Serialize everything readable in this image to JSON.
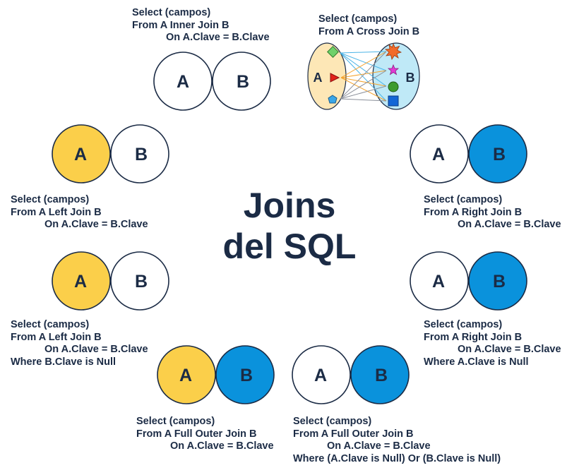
{
  "title": {
    "line1": "Joins",
    "line2": "del SQL"
  },
  "colors": {
    "a_fill": "#fbcf4a",
    "b_fill": "#0a92dc",
    "overlap": "#f4a22c",
    "outline": "#1b2b45",
    "cross_a_bg": "#fde7b6",
    "cross_b_bg": "#bfe9f7"
  },
  "labels": {
    "a": "A",
    "b": "B"
  },
  "joins": {
    "inner": {
      "lines": [
        "Select (campos)",
        "From A Inner Join B",
        "On A.Clave = B.Clave"
      ]
    },
    "cross": {
      "lines": [
        "Select (campos)",
        "From A Cross Join B"
      ]
    },
    "left": {
      "lines": [
        "Select (campos)",
        "From A Left Join B",
        "On A.Clave = B.Clave"
      ]
    },
    "right": {
      "lines": [
        "Select (campos)",
        "From A Right Join B",
        "On A.Clave = B.Clave"
      ]
    },
    "left_null": {
      "lines": [
        "Select (campos)",
        "From A Left Join B",
        "On A.Clave = B.Clave",
        "Where B.Clave is Null"
      ]
    },
    "right_null": {
      "lines": [
        "Select (campos)",
        "From A Right Join B",
        "On A.Clave = B.Clave",
        "Where A.Clave is Null"
      ]
    },
    "full": {
      "lines": [
        "Select (campos)",
        "From A Full Outer Join B",
        "On A.Clave = B.Clave"
      ]
    },
    "full_null": {
      "lines": [
        "Select (campos)",
        "From A Full Outer Join B",
        "On A.Clave = B.Clave",
        "Where (A.Clave is Null) Or (B.Clave is Null)"
      ]
    }
  }
}
